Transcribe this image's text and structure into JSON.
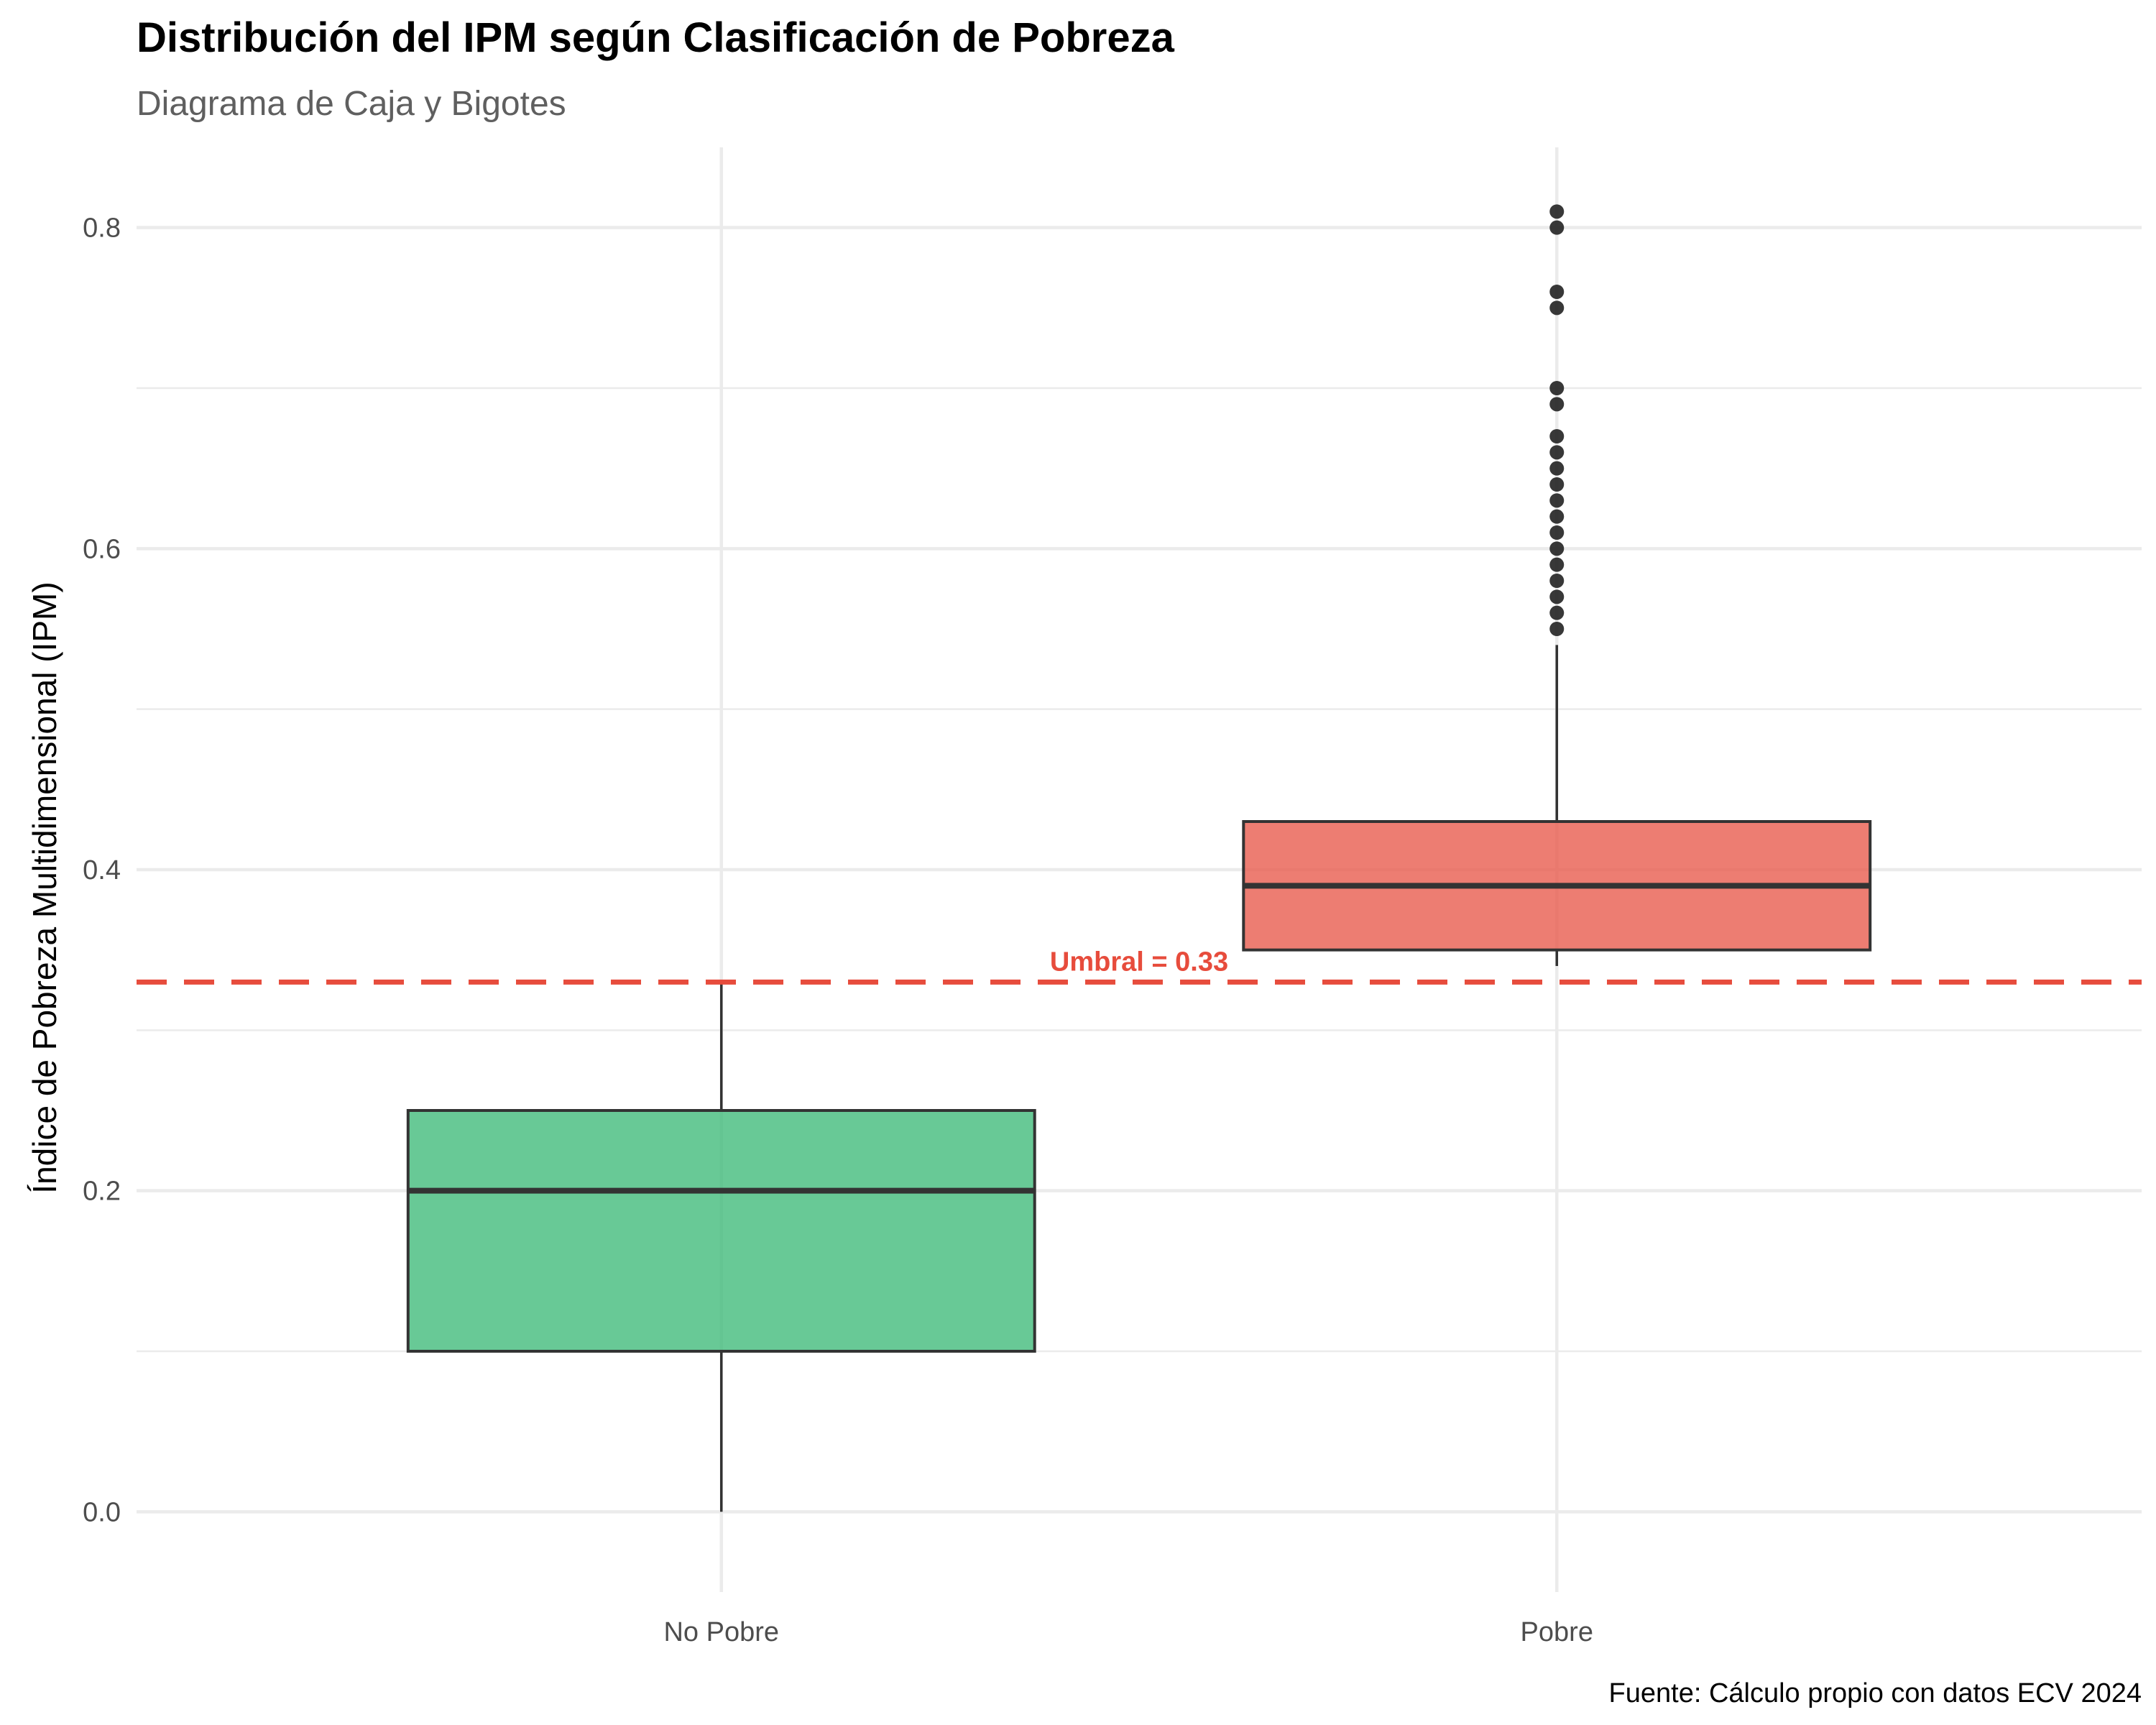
{
  "chart_data": {
    "type": "boxplot",
    "title": "Distribución del IPM según Clasificación de Pobreza",
    "subtitle": "Diagrama de Caja y Bigotes",
    "xlabel": "",
    "ylabel": "Índice de Pobreza Multidimensional (IPM)",
    "caption": "Fuente: Cálculo propio con datos ECV 2024",
    "ylim": [
      -0.05,
      0.85
    ],
    "y_ticks": [
      0.0,
      0.2,
      0.4,
      0.6,
      0.8
    ],
    "y_tick_labels": [
      "0.0",
      "0.2",
      "0.4",
      "0.6",
      "0.8"
    ],
    "grid": true,
    "threshold": {
      "value": 0.33,
      "label": "Umbral = 0.33",
      "color": "#e74c3c"
    },
    "categories": [
      "No Pobre",
      "Pobre"
    ],
    "boxes": [
      {
        "category": "No Pobre",
        "color": "#3dba78",
        "min": 0.0,
        "q1": 0.1,
        "median": 0.2,
        "q3": 0.25,
        "max": 0.33,
        "outliers": []
      },
      {
        "category": "Pobre",
        "color": "#e8584a",
        "min": 0.34,
        "q1": 0.35,
        "median": 0.39,
        "q3": 0.43,
        "max": 0.54,
        "outliers": [
          0.55,
          0.56,
          0.57,
          0.58,
          0.59,
          0.6,
          0.61,
          0.62,
          0.63,
          0.64,
          0.65,
          0.66,
          0.67,
          0.69,
          0.7,
          0.75,
          0.76,
          0.8,
          0.81
        ]
      }
    ]
  }
}
